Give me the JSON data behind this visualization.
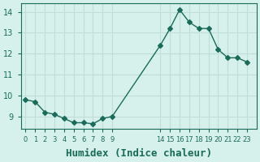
{
  "x": [
    0,
    1,
    2,
    3,
    4,
    5,
    6,
    7,
    8,
    9,
    14,
    15,
    16,
    17,
    18,
    19,
    20,
    21,
    22,
    23
  ],
  "y": [
    9.8,
    9.7,
    9.2,
    9.1,
    8.9,
    8.7,
    8.7,
    8.65,
    8.9,
    9.0,
    12.4,
    13.2,
    14.1,
    13.5,
    13.2,
    13.2,
    12.2,
    11.8,
    11.8,
    11.6
  ],
  "line_color": "#1a6b5a",
  "marker": "D",
  "marker_size": 3,
  "bg_color": "#d6f0ec",
  "grid_color": "#c0ddd8",
  "tick_color": "#1a6b5a",
  "xlabel": "Humidex (Indice chaleur)",
  "xlabel_fontsize": 9,
  "yticks": [
    9,
    10,
    11,
    12,
    13,
    14
  ],
  "xtick_labels": [
    "0",
    "1",
    "2",
    "3",
    "4",
    "5",
    "6",
    "7",
    "8",
    "9",
    "14",
    "15",
    "16",
    "17",
    "18",
    "19",
    "20",
    "21",
    "22",
    "23"
  ],
  "ylim": [
    8.4,
    14.4
  ],
  "xlim": [
    -0.5,
    24.0
  ]
}
